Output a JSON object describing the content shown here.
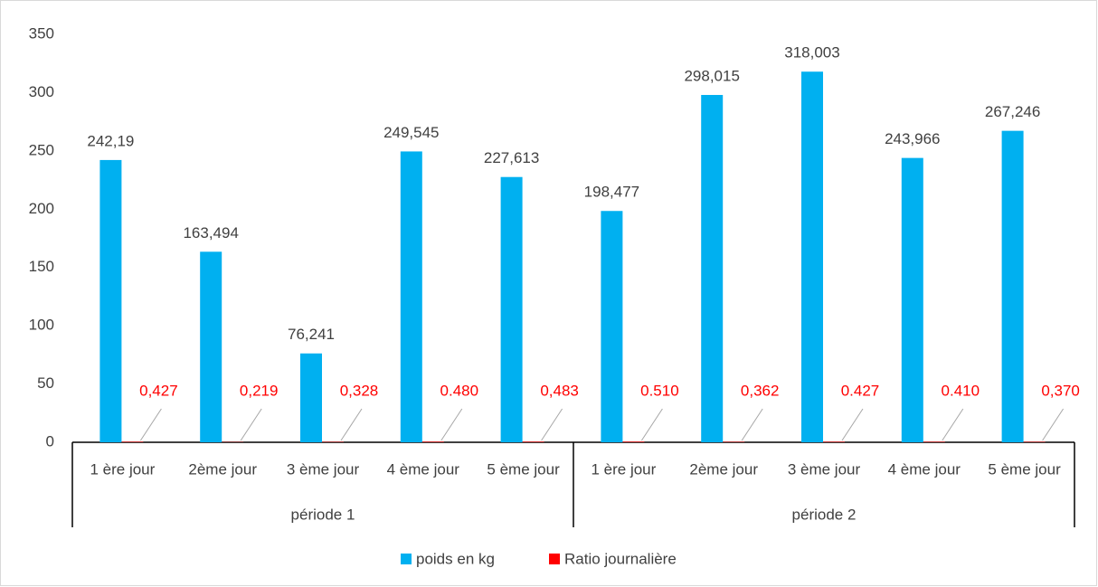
{
  "chart_data": {
    "type": "bar",
    "category_groups": [
      {
        "label": "période 1",
        "categories": [
          "1 ère jour",
          "2ème jour",
          "3 ème jour",
          "4 ème jour",
          "5 ème jour"
        ]
      },
      {
        "label": "période 2",
        "categories": [
          "1 ère jour",
          "2ème jour",
          "3 ème jour",
          "4 ème jour",
          "5 ème jour"
        ]
      }
    ],
    "series": [
      {
        "name": "poids en kg",
        "color": "#00b0f0",
        "values": [
          242.19,
          163.494,
          76.241,
          249.545,
          227.613,
          198.477,
          298.015,
          318.003,
          243.966,
          267.246
        ],
        "value_labels": [
          "242,19",
          "163,494",
          "76,241",
          "249,545",
          "227,613",
          "198,477",
          "298,015",
          "318,003",
          "243,966",
          "267,246"
        ]
      },
      {
        "name": "Ratio journalière",
        "color": "#ff0000",
        "values": [
          0.427,
          0.219,
          0.328,
          0.48,
          0.483,
          0.51,
          0.362,
          0.427,
          0.41,
          0.37
        ],
        "value_labels": [
          "0,427",
          "0,219",
          "0,328",
          "0.480",
          "0,483",
          "0.510",
          "0,362",
          "0.427",
          "0.410",
          "0,370"
        ]
      }
    ],
    "ylim": [
      0,
      350
    ],
    "yticks": [
      0,
      50,
      100,
      150,
      200,
      250,
      300,
      350
    ],
    "grid": false,
    "legend": "bottom"
  }
}
